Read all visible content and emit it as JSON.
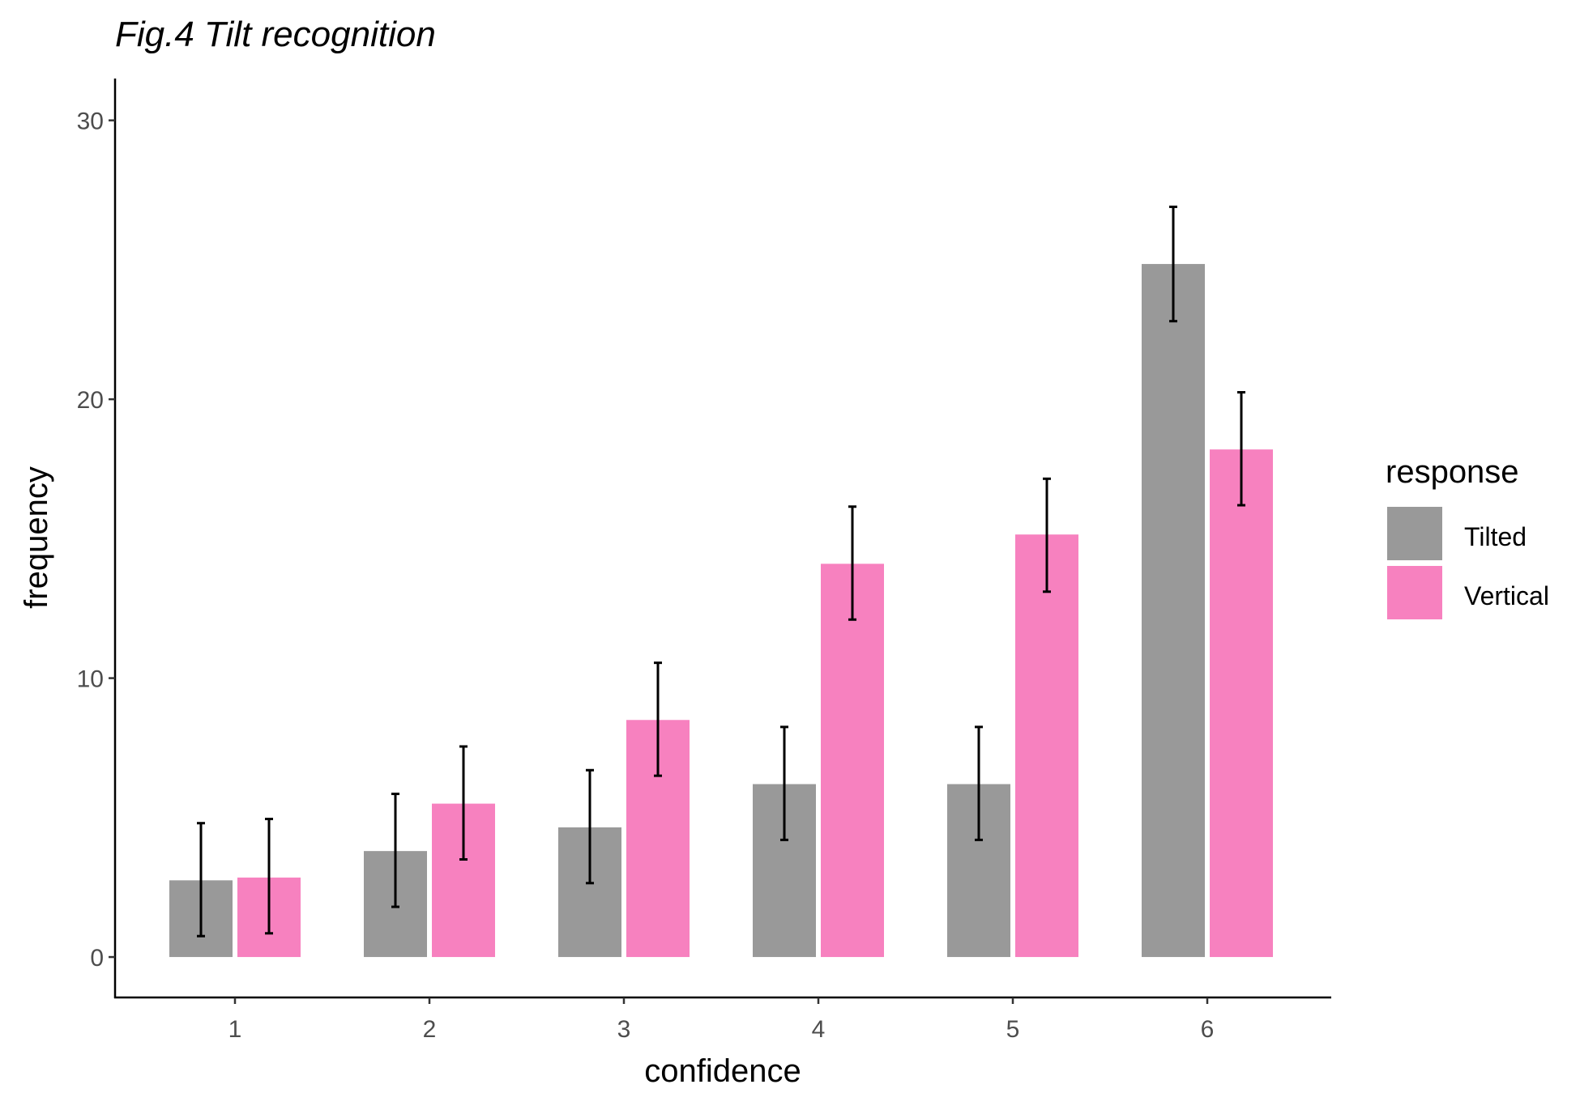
{
  "chart_data": {
    "type": "bar",
    "title": "Fig.4 Tilt recognition",
    "xlabel": "confidence",
    "ylabel": "frequency",
    "categories": [
      "1",
      "2",
      "3",
      "4",
      "5",
      "6"
    ],
    "ylim": [
      -1.45,
      31.5
    ],
    "yticks": [
      0,
      10,
      20,
      30
    ],
    "grid": false,
    "legend": {
      "title": "response",
      "position": "right"
    },
    "series": [
      {
        "name": "Tilted",
        "color": "#999999",
        "values": [
          2.75,
          3.8,
          4.65,
          6.2,
          6.2,
          24.85
        ],
        "err_low": [
          0.75,
          1.8,
          2.65,
          4.2,
          4.2,
          22.8
        ],
        "err_high": [
          4.8,
          5.85,
          6.7,
          8.25,
          8.25,
          26.9
        ]
      },
      {
        "name": "Vertical",
        "color": "#f781bf",
        "values": [
          2.85,
          5.5,
          8.5,
          14.1,
          15.15,
          18.2
        ],
        "err_low": [
          0.85,
          3.5,
          6.5,
          12.1,
          13.1,
          16.2
        ],
        "err_high": [
          4.95,
          7.55,
          10.55,
          16.15,
          17.15,
          20.25
        ]
      }
    ]
  }
}
